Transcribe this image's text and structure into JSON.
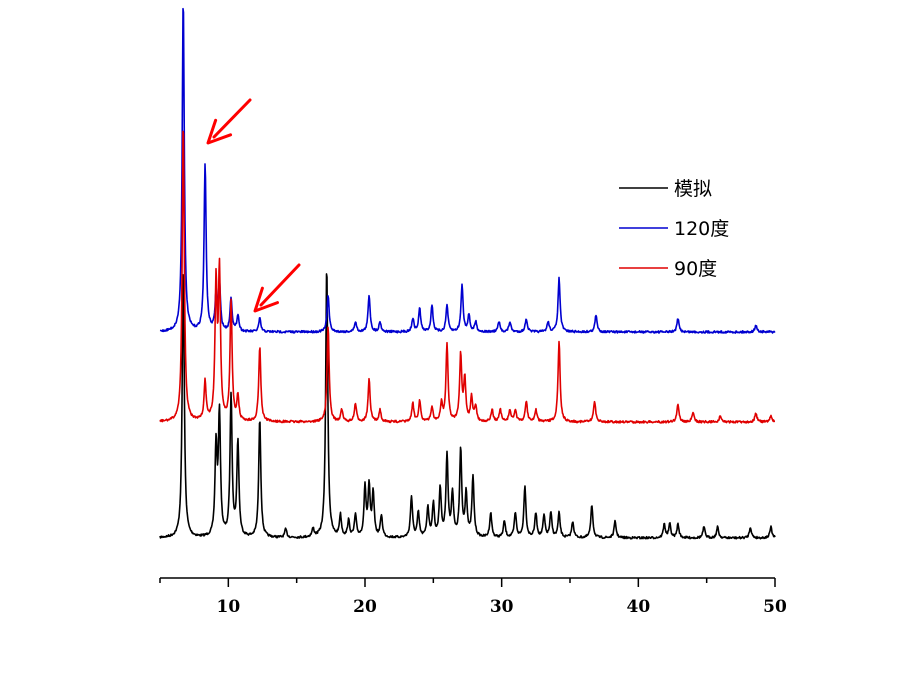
{
  "chart_data": {
    "type": "line",
    "title": "",
    "xlabel": "",
    "ylabel": "",
    "xlim": [
      5,
      50
    ],
    "x_ticks": [
      10,
      20,
      30,
      40,
      50
    ],
    "x_tick_labels": [
      "10",
      "20",
      "30",
      "40",
      "50"
    ],
    "grid": false,
    "y_axis_visible": false,
    "legend_position": "top-right",
    "series": [
      {
        "name": "模拟",
        "color": "#000000",
        "peaks": [
          [
            6.7,
            100
          ],
          [
            9.1,
            33
          ],
          [
            9.35,
            45
          ],
          [
            10.2,
            52
          ],
          [
            10.7,
            35
          ],
          [
            12.3,
            44
          ],
          [
            14.2,
            3
          ],
          [
            16.2,
            3
          ],
          [
            17.2,
            100
          ],
          [
            18.2,
            8
          ],
          [
            18.8,
            6
          ],
          [
            19.3,
            8
          ],
          [
            20.0,
            18
          ],
          [
            20.3,
            18
          ],
          [
            20.6,
            16
          ],
          [
            21.2,
            8
          ],
          [
            23.4,
            15
          ],
          [
            23.9,
            9
          ],
          [
            24.6,
            11
          ],
          [
            25.0,
            12
          ],
          [
            25.5,
            18
          ],
          [
            26.0,
            30
          ],
          [
            26.4,
            16
          ],
          [
            27.0,
            32
          ],
          [
            27.4,
            16
          ],
          [
            27.9,
            22
          ],
          [
            29.2,
            9
          ],
          [
            30.2,
            6
          ],
          [
            31.0,
            9
          ],
          [
            31.7,
            19
          ],
          [
            32.5,
            9
          ],
          [
            33.1,
            8
          ],
          [
            33.6,
            9
          ],
          [
            34.2,
            9
          ],
          [
            35.2,
            6
          ],
          [
            36.6,
            12
          ],
          [
            38.3,
            6
          ],
          [
            41.9,
            5
          ],
          [
            42.3,
            5
          ],
          [
            42.9,
            5
          ],
          [
            44.8,
            4
          ],
          [
            45.8,
            4
          ],
          [
            48.2,
            4
          ],
          [
            49.7,
            4
          ]
        ]
      },
      {
        "name": "120度",
        "color": "#0000d0",
        "peaks": [
          [
            6.7,
            100
          ],
          [
            8.3,
            50
          ],
          [
            9.1,
            10
          ],
          [
            9.35,
            14
          ],
          [
            10.2,
            10
          ],
          [
            10.7,
            5
          ],
          [
            12.3,
            4
          ],
          [
            17.3,
            11
          ],
          [
            19.3,
            3
          ],
          [
            20.3,
            11
          ],
          [
            21.1,
            3
          ],
          [
            23.5,
            4
          ],
          [
            24.0,
            7
          ],
          [
            24.9,
            8
          ],
          [
            26.0,
            8
          ],
          [
            27.1,
            14
          ],
          [
            27.6,
            5
          ],
          [
            28.1,
            3
          ],
          [
            29.8,
            3
          ],
          [
            30.6,
            3
          ],
          [
            31.8,
            4
          ],
          [
            33.4,
            3
          ],
          [
            34.2,
            16
          ],
          [
            36.9,
            5
          ],
          [
            42.9,
            4
          ],
          [
            48.6,
            2
          ]
        ]
      },
      {
        "name": "90度",
        "color": "#e00000",
        "peaks": [
          [
            6.7,
            100
          ],
          [
            8.3,
            13
          ],
          [
            9.1,
            45
          ],
          [
            9.35,
            49
          ],
          [
            10.2,
            40
          ],
          [
            10.7,
            8
          ],
          [
            12.3,
            25
          ],
          [
            17.3,
            32
          ],
          [
            18.3,
            4
          ],
          [
            19.3,
            6
          ],
          [
            20.3,
            14
          ],
          [
            21.1,
            4
          ],
          [
            23.5,
            6
          ],
          [
            24.0,
            7
          ],
          [
            24.9,
            5
          ],
          [
            25.6,
            6
          ],
          [
            26.0,
            26
          ],
          [
            27.0,
            22
          ],
          [
            27.3,
            14
          ],
          [
            27.8,
            8
          ],
          [
            28.1,
            5
          ],
          [
            29.3,
            4
          ],
          [
            29.9,
            4
          ],
          [
            30.6,
            4
          ],
          [
            31.0,
            4
          ],
          [
            31.8,
            7
          ],
          [
            32.5,
            4
          ],
          [
            34.2,
            27
          ],
          [
            36.8,
            7
          ],
          [
            42.9,
            6
          ],
          [
            44.0,
            3
          ],
          [
            46.0,
            2
          ],
          [
            48.6,
            3
          ],
          [
            49.7,
            2
          ]
        ]
      }
    ],
    "annotations": [
      {
        "type": "arrow",
        "color": "#ff0000",
        "points_to": [
          8.3,
          "120度"
        ]
      },
      {
        "type": "arrow",
        "color": "#ff0000",
        "points_to": [
          11.8,
          "120度"
        ]
      }
    ]
  }
}
